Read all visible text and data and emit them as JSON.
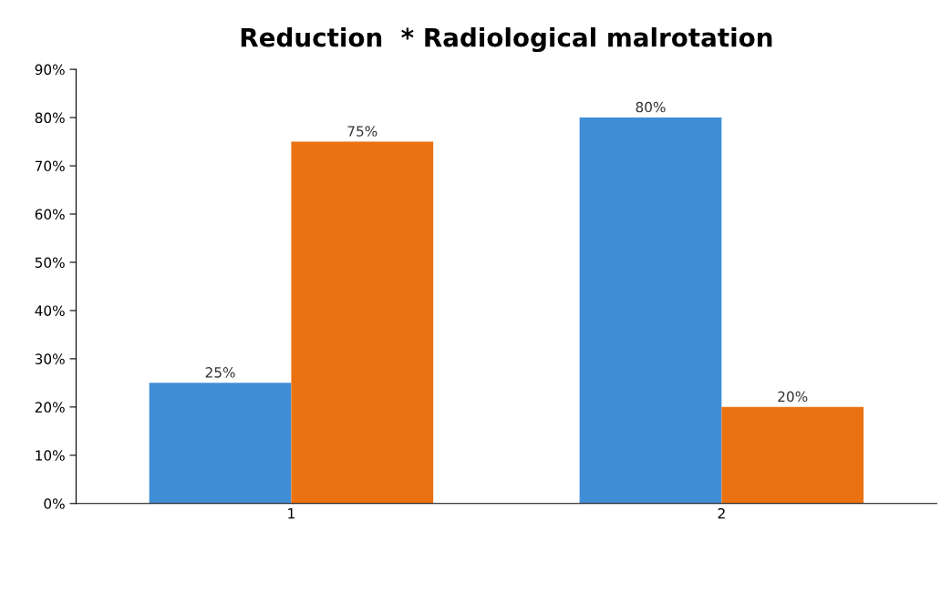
{
  "chart_data": {
    "type": "bar",
    "title": "Reduction  * Radiological malrotation",
    "categories": [
      "1",
      "2"
    ],
    "series": [
      {
        "color": "#3f8ed6",
        "values": [
          25,
          80
        ],
        "value_labels": [
          "25%",
          "80%"
        ]
      },
      {
        "color": "#ea7211",
        "values": [
          75,
          20
        ],
        "value_labels": [
          "75%",
          "20%"
        ]
      }
    ],
    "ylim": [
      0,
      90
    ],
    "yticks": [
      {
        "value": 0,
        "label": "0%"
      },
      {
        "value": 10,
        "label": "10%"
      },
      {
        "value": 20,
        "label": "20%"
      },
      {
        "value": 30,
        "label": "30%"
      },
      {
        "value": 40,
        "label": "40%"
      },
      {
        "value": 50,
        "label": "50%"
      },
      {
        "value": 60,
        "label": "60%"
      },
      {
        "value": 70,
        "label": "70%"
      },
      {
        "value": 80,
        "label": "80%"
      },
      {
        "value": 90,
        "label": "90%"
      }
    ],
    "grid": false
  }
}
